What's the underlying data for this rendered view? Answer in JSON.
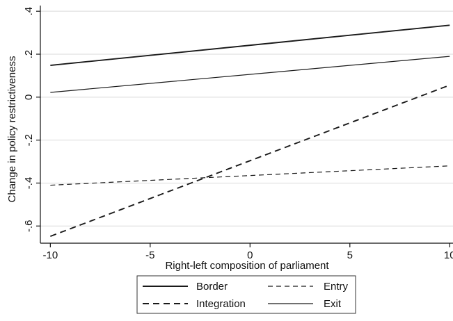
{
  "chart_data": {
    "type": "line",
    "title": "",
    "xlabel": "Right-left composition of parliament",
    "ylabel": "Change in policy restrictiveness",
    "xlim": [
      -10.5,
      10.2
    ],
    "ylim": [
      -0.68,
      0.42
    ],
    "x_ticks": [
      -10,
      -5,
      0,
      5,
      10
    ],
    "x_tick_labels": [
      "-10",
      "-5",
      "0",
      "5",
      "10"
    ],
    "y_ticks": [
      -0.6,
      -0.4,
      -0.2,
      0,
      0.2,
      0.4
    ],
    "y_tick_labels": [
      "-.6",
      "-.4",
      "-.2",
      "0",
      ".2",
      ".4"
    ],
    "grid": "horizontal",
    "legend_position": "bottom",
    "series": [
      {
        "name": "Border",
        "style": "solid",
        "weight": "thick",
        "x": [
          -10,
          10
        ],
        "y": [
          0.148,
          0.335
        ]
      },
      {
        "name": "Entry",
        "style": "dashed-short",
        "weight": "thin",
        "x": [
          -10,
          10
        ],
        "y": [
          -0.41,
          -0.32
        ]
      },
      {
        "name": "Integration",
        "style": "dashed-long",
        "weight": "thick",
        "x": [
          -10,
          10
        ],
        "y": [
          -0.648,
          0.056
        ]
      },
      {
        "name": "Exit",
        "style": "solid",
        "weight": "thin",
        "x": [
          -10,
          10
        ],
        "y": [
          0.022,
          0.19
        ]
      }
    ],
    "legend_order": [
      "Border",
      "Entry",
      "Integration",
      "Exit"
    ]
  },
  "colors": {
    "line": "#1a1a1a",
    "grid": "#d9d9d9",
    "axis": "#111111",
    "background": "#ffffff"
  }
}
